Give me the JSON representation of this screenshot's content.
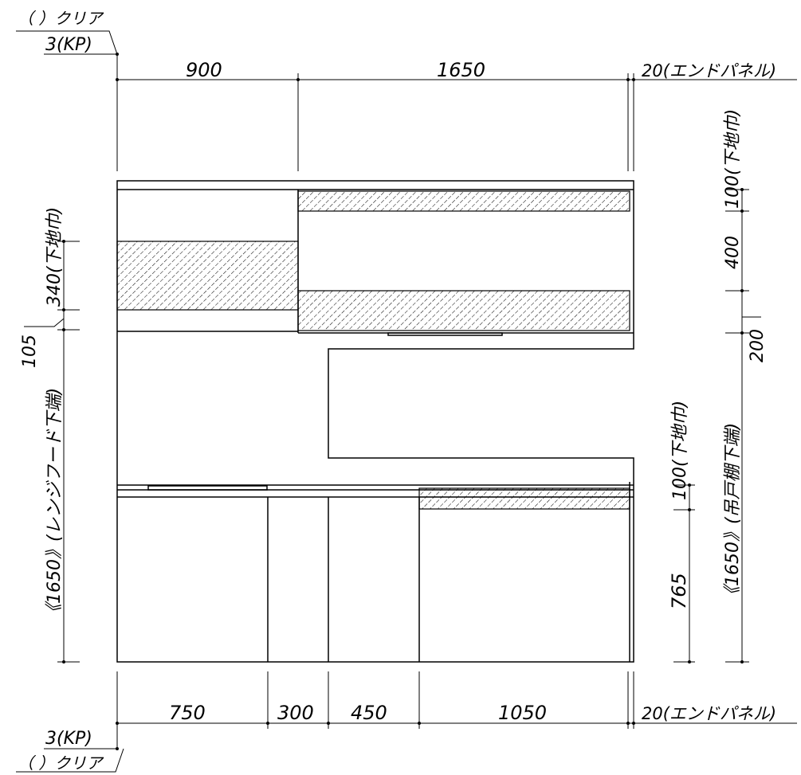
{
  "top_dimensions": {
    "clear_label": "（ ）クリア",
    "kp_label": "3(KP)",
    "widths": [
      "900",
      "1650"
    ],
    "end_panel": "20(エンドパネル)"
  },
  "bottom_dimensions": {
    "widths": [
      "750",
      "300",
      "450",
      "1050"
    ],
    "end_panel": "20(エンドパネル)",
    "kp_label": "3(KP)",
    "clear_label": "（ ）クリア"
  },
  "left_dimensions": {
    "backing_width": "340(下地巾)",
    "gap": "105",
    "range_hood_bottom": "《1650》(レンジフード下端)"
  },
  "right_dimensions": {
    "upper_backing": "100(下地巾)",
    "upper_height": "400",
    "gap": "200",
    "lower_backing": "100(下地巾)",
    "wall_cabinet_bottom": "《1650》(吊戸棚下端)",
    "counter_height": "765"
  },
  "hatch_color": "#000000",
  "line_color": "#000000"
}
